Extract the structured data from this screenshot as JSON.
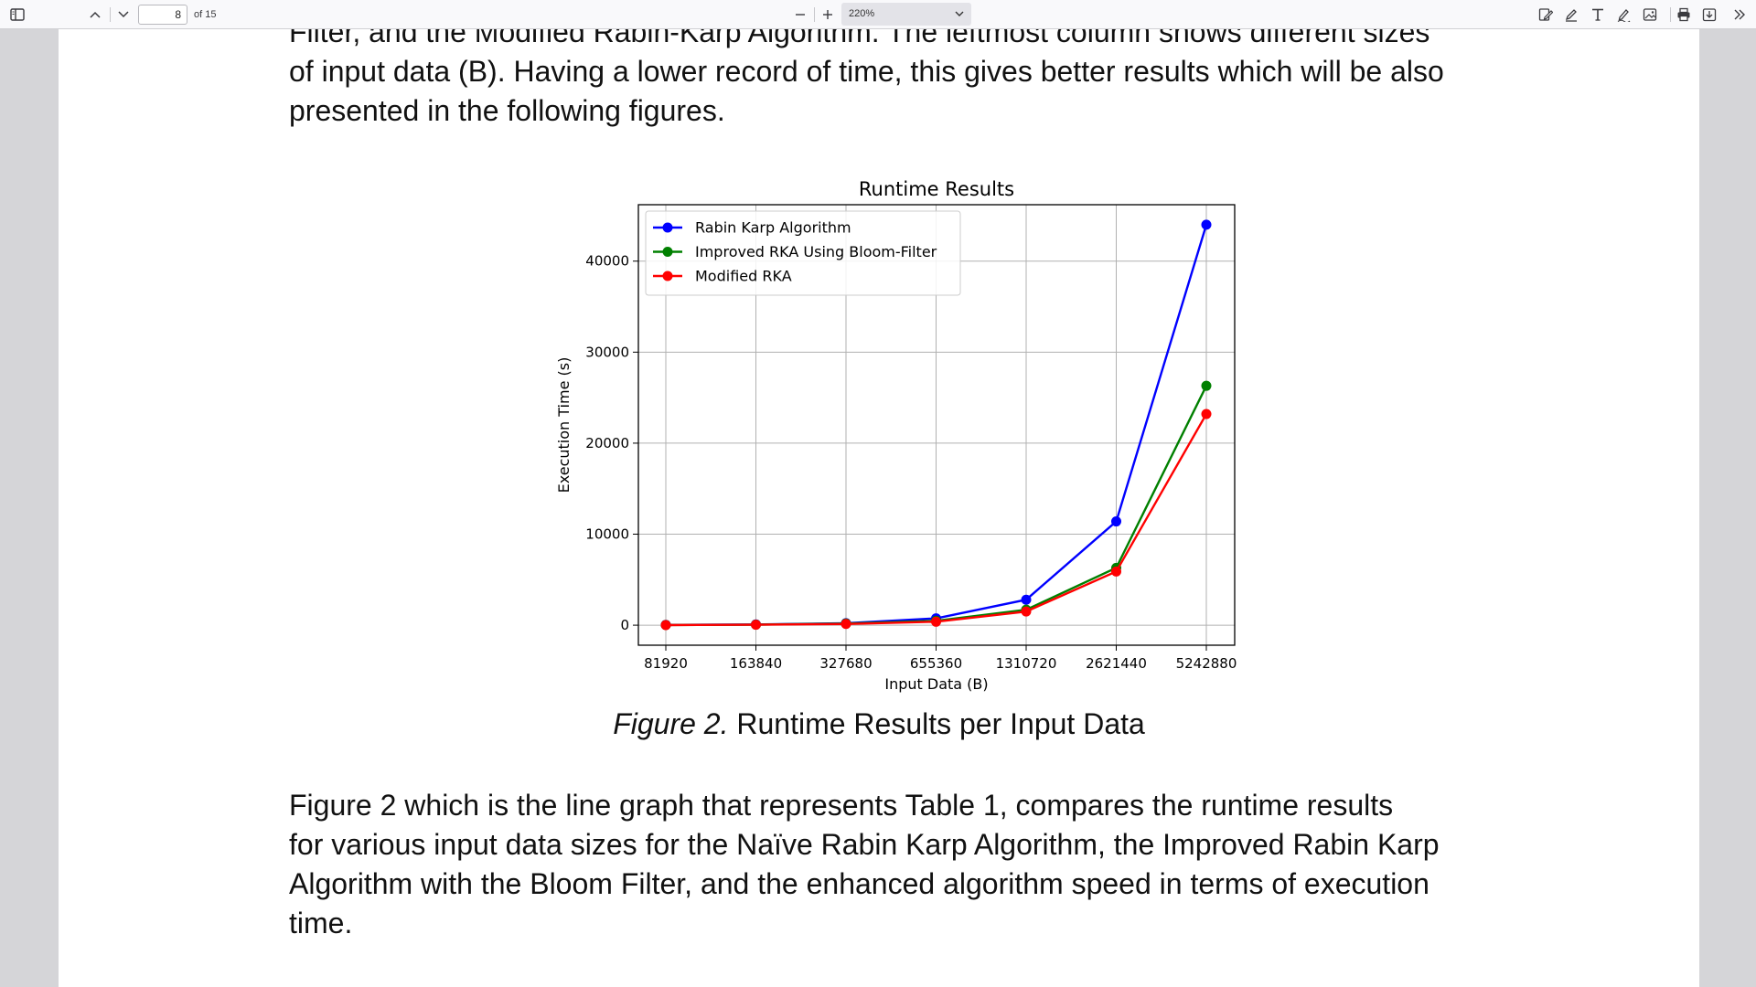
{
  "toolbar": {
    "page_current": "8",
    "page_of": "of 15",
    "zoom_label": "220%",
    "icons": [
      "sidebar-icon",
      "prev-page-icon",
      "next-page-icon",
      "zoom-out-icon",
      "zoom-in-icon",
      "chevron-down-icon",
      "highlight-icon",
      "draw-icon",
      "text-icon",
      "signature-icon",
      "image-icon",
      "print-icon",
      "save-icon",
      "more-tools-icon"
    ]
  },
  "document": {
    "para_top": "Filter, and the Modified Rabin-Karp Algorithm. The leftmost column shows different sizes\nof input data (B). Having a lower record of time, this gives better results which will be also\npresented in the following figures.",
    "caption_label": "Figure 2.",
    "caption_text": " Runtime Results per Input Data",
    "para_bottom": "        Figure 2 which is the line graph that represents Table 1, compares the runtime results\nfor various input data sizes for the Naïve Rabin Karp Algorithm, the Improved Rabin Karp\nAlgorithm with the Bloom Filter, and the enhanced algorithm speed in terms of execution\ntime."
  },
  "chart_data": {
    "type": "line",
    "title": "Runtime Results",
    "xlabel": "Input Data (B)",
    "ylabel": "Execution Time (s)",
    "categories": [
      "81920",
      "163840",
      "327680",
      "655360",
      "1310720",
      "2621440",
      "5242880"
    ],
    "yticks": [
      0,
      10000,
      20000,
      30000,
      40000
    ],
    "ylim": [
      -2200,
      46200
    ],
    "grid": true,
    "legend_position": "upper-left",
    "series": [
      {
        "name": "Rabin Karp Algorithm",
        "color": "#0000ff",
        "values": [
          30,
          80,
          220,
          750,
          2800,
          11400,
          44000
        ]
      },
      {
        "name": "Improved RKA Using Bloom-Filter",
        "color": "#008000",
        "values": [
          20,
          60,
          180,
          480,
          1700,
          6300,
          26300
        ]
      },
      {
        "name": "Modified RKA",
        "color": "#ff0000",
        "values": [
          10,
          50,
          130,
          380,
          1500,
          5900,
          23200
        ]
      }
    ]
  }
}
